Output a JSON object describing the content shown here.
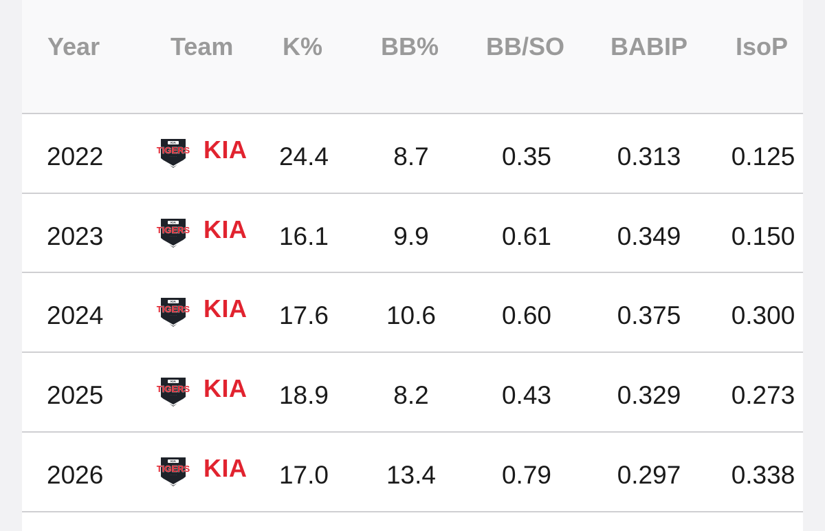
{
  "headers": {
    "year": "Year",
    "team": "Team",
    "k_pct": "K%",
    "bb_pct": "BB%",
    "bb_so": "BB/SO",
    "babip": "BABIP",
    "isop": "IsoP"
  },
  "team_logo": {
    "icon": "tigers-logo-icon",
    "text": "TIGERS",
    "accent": "#e1232f",
    "dark": "#1e2229"
  },
  "rows": [
    {
      "year": "2022",
      "team": "KIA",
      "k_pct": "24.4",
      "bb_pct": "8.7",
      "bb_so": "0.35",
      "babip": "0.313",
      "isop": "0.125"
    },
    {
      "year": "2023",
      "team": "KIA",
      "k_pct": "16.1",
      "bb_pct": "9.9",
      "bb_so": "0.61",
      "babip": "0.349",
      "isop": "0.150"
    },
    {
      "year": "2024",
      "team": "KIA",
      "k_pct": "17.6",
      "bb_pct": "10.6",
      "bb_so": "0.60",
      "babip": "0.375",
      "isop": "0.300"
    },
    {
      "year": "2025",
      "team": "KIA",
      "k_pct": "18.9",
      "bb_pct": "8.2",
      "bb_so": "0.43",
      "babip": "0.329",
      "isop": "0.273"
    },
    {
      "year": "2026",
      "team": "KIA",
      "k_pct": "17.0",
      "bb_pct": "13.4",
      "bb_so": "0.79",
      "babip": "0.297",
      "isop": "0.338"
    }
  ]
}
